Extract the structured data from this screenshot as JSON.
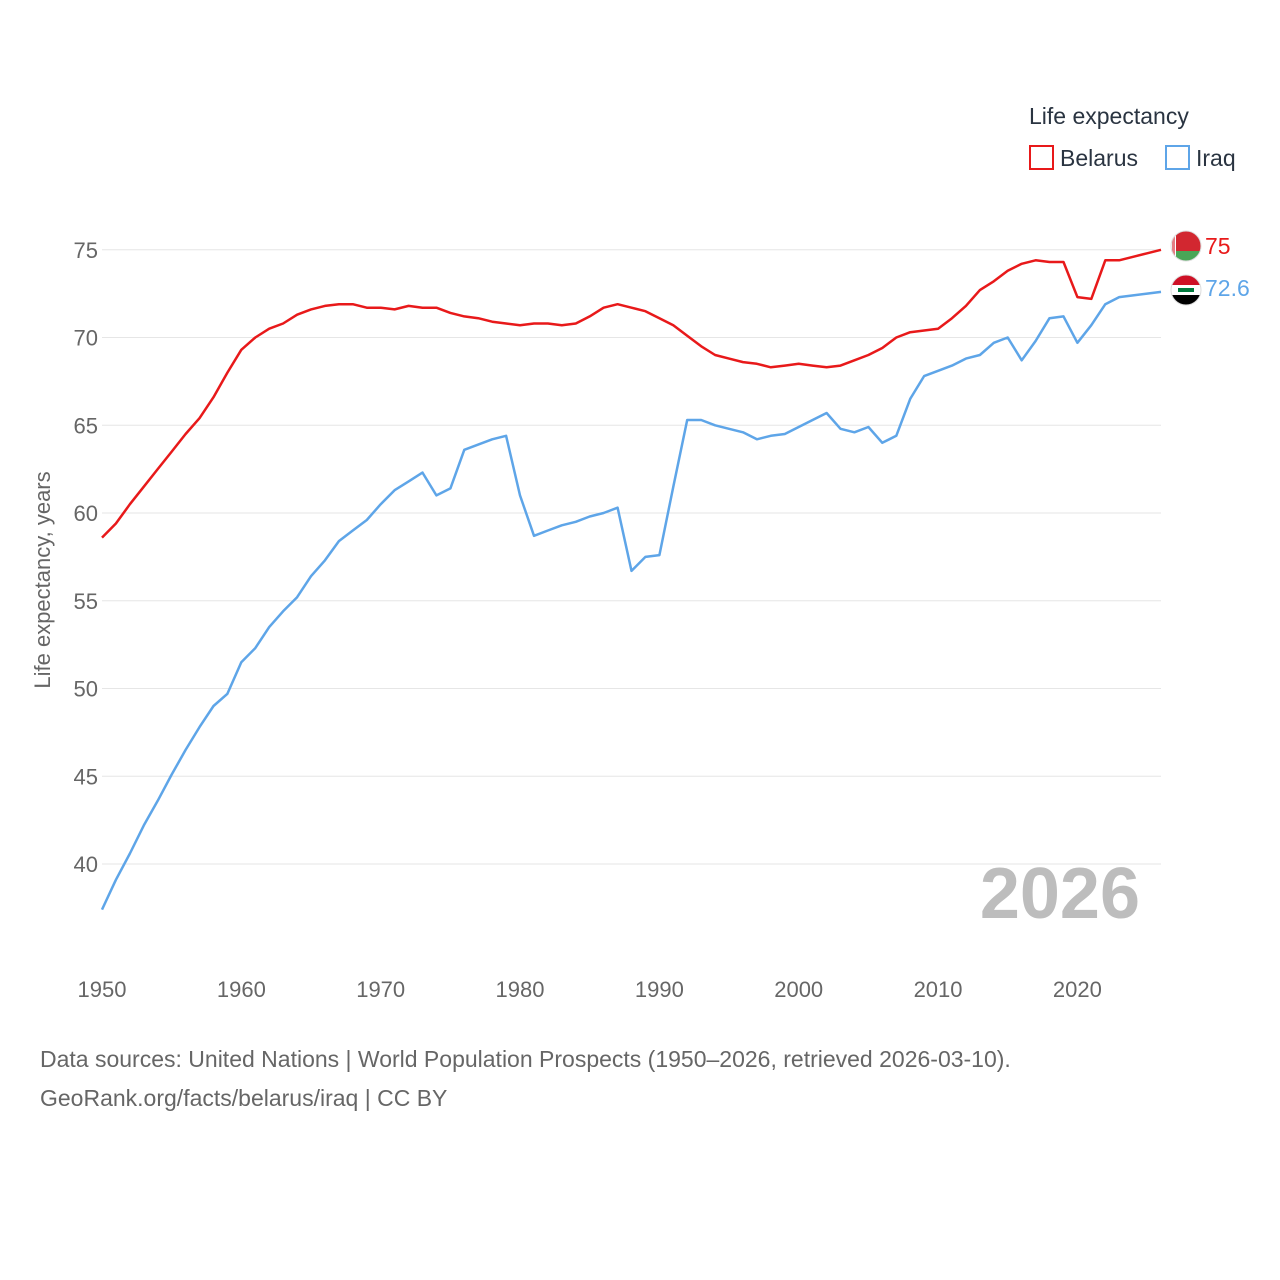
{
  "chart_data": {
    "type": "line",
    "legend_title": "Life expectancy",
    "legend_position": "top-right",
    "ylabel": "Life expectancy, years",
    "xlim": [
      1950,
      2026
    ],
    "ylim": [
      35,
      78
    ],
    "x_ticks": [
      1950,
      1960,
      1970,
      1980,
      1990,
      2000,
      2010,
      2020
    ],
    "y_ticks": [
      40,
      45,
      50,
      55,
      60,
      65,
      70,
      75
    ],
    "grid": true,
    "year_stamp": "2026",
    "x": [
      1950,
      1951,
      1952,
      1953,
      1954,
      1955,
      1956,
      1957,
      1958,
      1959,
      1960,
      1961,
      1962,
      1963,
      1964,
      1965,
      1966,
      1967,
      1968,
      1969,
      1970,
      1971,
      1972,
      1973,
      1974,
      1975,
      1976,
      1977,
      1978,
      1979,
      1980,
      1981,
      1982,
      1983,
      1984,
      1985,
      1986,
      1987,
      1988,
      1989,
      1990,
      1991,
      1992,
      1993,
      1994,
      1995,
      1996,
      1997,
      1998,
      1999,
      2000,
      2001,
      2002,
      2003,
      2004,
      2005,
      2006,
      2007,
      2008,
      2009,
      2010,
      2011,
      2012,
      2013,
      2014,
      2015,
      2016,
      2017,
      2018,
      2019,
      2020,
      2021,
      2022,
      2023,
      2024,
      2025,
      2026
    ],
    "series": [
      {
        "name": "Belarus",
        "color": "#e8191a",
        "end_label": "75",
        "values": [
          58.6,
          59.4,
          60.5,
          61.5,
          62.5,
          63.5,
          64.5,
          65.4,
          66.6,
          68.0,
          69.3,
          70.0,
          70.5,
          70.8,
          71.3,
          71.6,
          71.8,
          71.9,
          71.9,
          71.7,
          71.7,
          71.6,
          71.8,
          71.7,
          71.7,
          71.4,
          71.2,
          71.1,
          70.9,
          70.8,
          70.7,
          70.8,
          70.8,
          70.7,
          70.8,
          71.2,
          71.7,
          71.9,
          71.7,
          71.5,
          71.1,
          70.7,
          70.1,
          69.5,
          69.0,
          68.8,
          68.6,
          68.5,
          68.3,
          68.4,
          68.5,
          68.4,
          68.3,
          68.4,
          68.7,
          69.0,
          69.4,
          70.0,
          70.3,
          70.4,
          70.5,
          71.1,
          71.8,
          72.7,
          73.2,
          73.8,
          74.2,
          74.4,
          74.3,
          74.3,
          72.3,
          72.2,
          74.4,
          74.4,
          74.6,
          74.8,
          75.0
        ]
      },
      {
        "name": "Iraq",
        "color": "#5ea5e8",
        "end_label": "72.6",
        "values": [
          37.4,
          39.1,
          40.6,
          42.2,
          43.6,
          45.1,
          46.5,
          47.8,
          49.0,
          49.7,
          51.5,
          52.3,
          53.5,
          54.4,
          55.2,
          56.4,
          57.3,
          58.4,
          59.0,
          59.6,
          60.5,
          61.3,
          61.8,
          62.3,
          61.0,
          61.4,
          63.6,
          63.9,
          64.2,
          64.4,
          61.0,
          58.7,
          59.0,
          59.3,
          59.5,
          59.8,
          60.0,
          60.3,
          56.7,
          57.5,
          57.6,
          61.5,
          65.3,
          65.3,
          65.0,
          64.8,
          64.6,
          64.2,
          64.4,
          64.5,
          64.9,
          65.3,
          65.7,
          64.8,
          64.6,
          64.9,
          64.0,
          64.4,
          66.5,
          67.8,
          68.1,
          68.4,
          68.8,
          69.0,
          69.7,
          70.0,
          68.7,
          69.8,
          71.1,
          71.2,
          69.7,
          70.7,
          71.9,
          72.3,
          72.4,
          72.5,
          72.6
        ]
      }
    ]
  },
  "source": {
    "line1": "Data sources: United Nations | World Population Prospects (1950–2026, retrieved 2026-03-10).",
    "line2": "GeoRank.org/facts/belarus/iraq | CC BY"
  }
}
